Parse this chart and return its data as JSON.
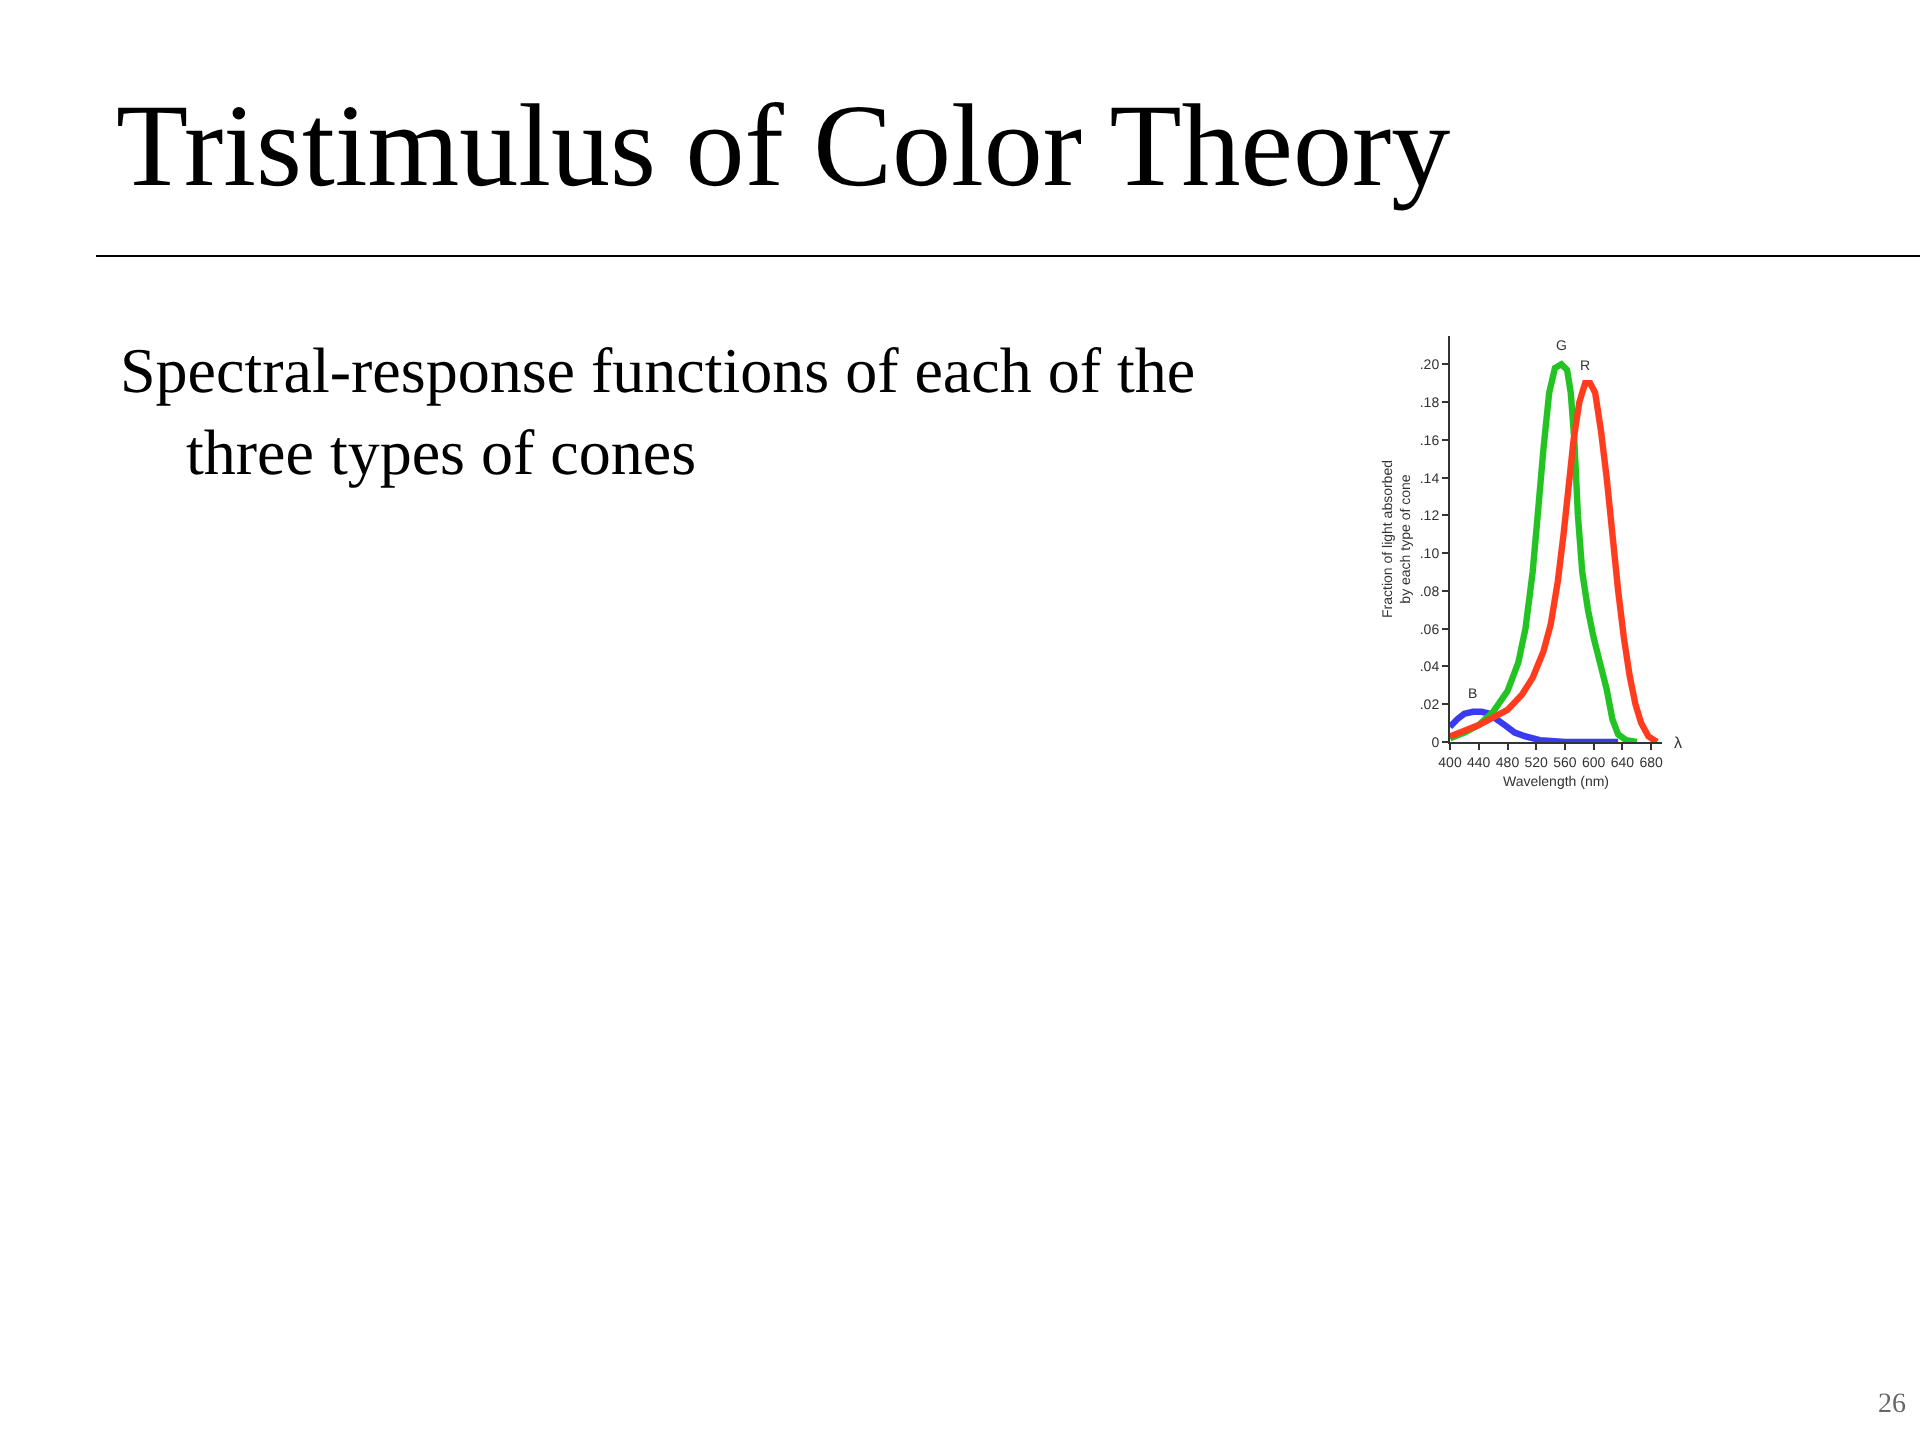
{
  "chart_data": {
    "type": "line",
    "title": "Tristimulus of Color Theory",
    "subtitle": "Spectral-response functions of each of the\nthree types of cones",
    "xlabel": "Wavelength (nm)",
    "ylabel": "Fraction of light absorbed\nby each type of cone",
    "annotations": [
      "λ",
      "26"
    ],
    "xlim": [
      400,
      695
    ],
    "xticks": [
      400,
      440,
      480,
      520,
      560,
      600,
      640,
      680
    ],
    "ylim": [
      0,
      0.215
    ],
    "yticks": [
      0,
      {
        "value": 0.02,
        "label": ".02"
      },
      {
        "value": 0.04,
        "label": ".04"
      },
      {
        "value": 0.06,
        "label": ".06"
      },
      {
        "value": 0.08,
        "label": ".08"
      },
      {
        "value": 0.1,
        "label": ".10"
      },
      {
        "value": 0.12,
        "label": ".12"
      },
      {
        "value": 0.14,
        "label": ".14"
      },
      {
        "value": 0.16,
        "label": ".16"
      },
      {
        "value": 0.18,
        "label": ".18"
      },
      {
        "value": 0.2,
        "label": ".20"
      }
    ],
    "grid": false,
    "legend": false,
    "marker": "none",
    "line_style": "solid",
    "series": [
      {
        "name": "B",
        "color": "#3a3aef",
        "x": [
          400,
          410,
          420,
          432,
          444,
          455,
          465,
          476,
          490,
          505,
          525,
          560,
          600,
          634
        ],
        "values": [
          0.008,
          0.012,
          0.015,
          0.016,
          0.016,
          0.015,
          0.012,
          0.009,
          0.005,
          0.003,
          0.001,
          0,
          0,
          0
        ]
      },
      {
        "name": "G",
        "color": "#22c322",
        "x": [
          400,
          420,
          440,
          460,
          480,
          495,
          505,
          515,
          522,
          530,
          538,
          546,
          555,
          563,
          568,
          573,
          578,
          584,
          592,
          600,
          610,
          618,
          626,
          634,
          645,
          660
        ],
        "values": [
          0.002,
          0.005,
          0.009,
          0.016,
          0.027,
          0.042,
          0.06,
          0.09,
          0.12,
          0.155,
          0.185,
          0.198,
          0.2,
          0.197,
          0.185,
          0.16,
          0.12,
          0.09,
          0.07,
          0.055,
          0.04,
          0.028,
          0.012,
          0.004,
          0.001,
          0
        ]
      },
      {
        "name": "R",
        "color": "#ff3c1e",
        "x": [
          400,
          420,
          440,
          460,
          480,
          500,
          515,
          530,
          540,
          550,
          558,
          565,
          572,
          580,
          588,
          595,
          602,
          610,
          618,
          626,
          634,
          642,
          650,
          658,
          666,
          676,
          688
        ],
        "values": [
          0.003,
          0.006,
          0.009,
          0.013,
          0.017,
          0.025,
          0.034,
          0.048,
          0.062,
          0.085,
          0.11,
          0.135,
          0.16,
          0.18,
          0.19,
          0.19,
          0.185,
          0.165,
          0.14,
          0.11,
          0.08,
          0.055,
          0.035,
          0.02,
          0.01,
          0.003,
          0
        ]
      }
    ]
  }
}
